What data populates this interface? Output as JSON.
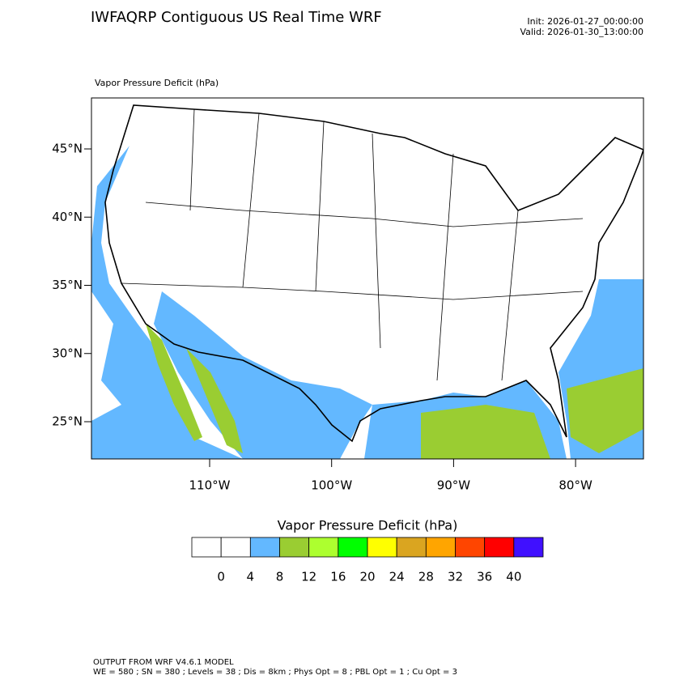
{
  "header": {
    "title": "IWFAQRP Contiguous US Real Time WRF",
    "init": "Init: 2026-01-27_00:00:00",
    "valid": "Valid: 2026-01-30_13:00:00"
  },
  "map": {
    "subtitle": "Vapor Pressure Deficit   (hPa)",
    "lat_labels": [
      "45°N",
      "40°N",
      "35°N",
      "30°N",
      "25°N"
    ],
    "lon_labels": [
      "110°W",
      "100°W",
      "90°W",
      "80°W"
    ]
  },
  "colorbar": {
    "title": "Vapor Pressure Deficit  (hPa)",
    "colors": [
      "#ffffff",
      "#ffffff",
      "#63b8ff",
      "#9acd32",
      "#adff2f",
      "#00ff00",
      "#ffff00",
      "#daa520",
      "#ffa500",
      "#ff4500",
      "#ff0000",
      "#4010ff"
    ],
    "labels": [
      0,
      4,
      8,
      12,
      16,
      20,
      24,
      28,
      32,
      36,
      40
    ]
  },
  "footer": {
    "line1": "OUTPUT FROM WRF V4.6.1 MODEL",
    "line2": "WE = 580 ; SN = 380 ; Levels = 38 ; Dis = 8km ; Phys Opt = 8 ; PBL Opt = 1 ; Cu Opt = 3"
  }
}
